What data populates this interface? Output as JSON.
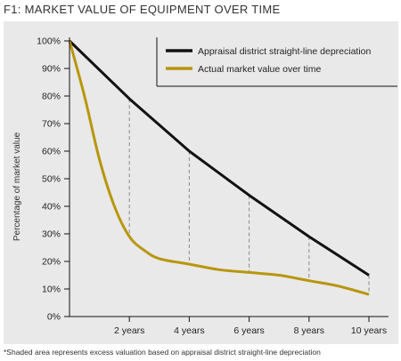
{
  "title": "F1: MARKET VALUE OF EQUIPMENT OVER TIME",
  "footnote": "*Shaded area represents excess valuation based on appraisal district straight-line depreciation",
  "colors": {
    "series_black": "#111111",
    "series_gold": "#b8960c",
    "panel_bg": "#e9e9e9",
    "dashed": "#888888"
  },
  "chart_data": {
    "type": "line",
    "ylabel": "Percentage of market value",
    "xlabel": "",
    "x_ticks": [
      {
        "x": 2,
        "label": "2 years"
      },
      {
        "x": 4,
        "label": "4 years"
      },
      {
        "x": 6,
        "label": "6 years"
      },
      {
        "x": 8,
        "label": "8 years"
      },
      {
        "x": 10,
        "label": "10 years"
      }
    ],
    "y_ticks": [
      "0%",
      "10%",
      "20%",
      "30%",
      "40%",
      "50%",
      "60%",
      "70%",
      "80%",
      "90%",
      "100%"
    ],
    "xlim": [
      0,
      10
    ],
    "ylim": [
      0,
      100
    ],
    "legend": "top-right",
    "series": [
      {
        "name": "Appraisal district straight-line depreciation",
        "color": "#111111",
        "x": [
          0,
          2,
          4,
          6,
          8,
          10
        ],
        "y": [
          100,
          79,
          60,
          44,
          29,
          15
        ]
      },
      {
        "name": "Actual market value over time",
        "color": "#b8960c",
        "x": [
          0,
          0.5,
          1,
          1.5,
          2,
          2.5,
          3,
          4,
          5,
          6,
          7,
          8,
          9,
          10
        ],
        "y": [
          100,
          80,
          57,
          40,
          29,
          24,
          21,
          19,
          17,
          16,
          15,
          13,
          11,
          8
        ]
      }
    ],
    "gap_markers_x": [
      2,
      4,
      6,
      8,
      10
    ]
  }
}
